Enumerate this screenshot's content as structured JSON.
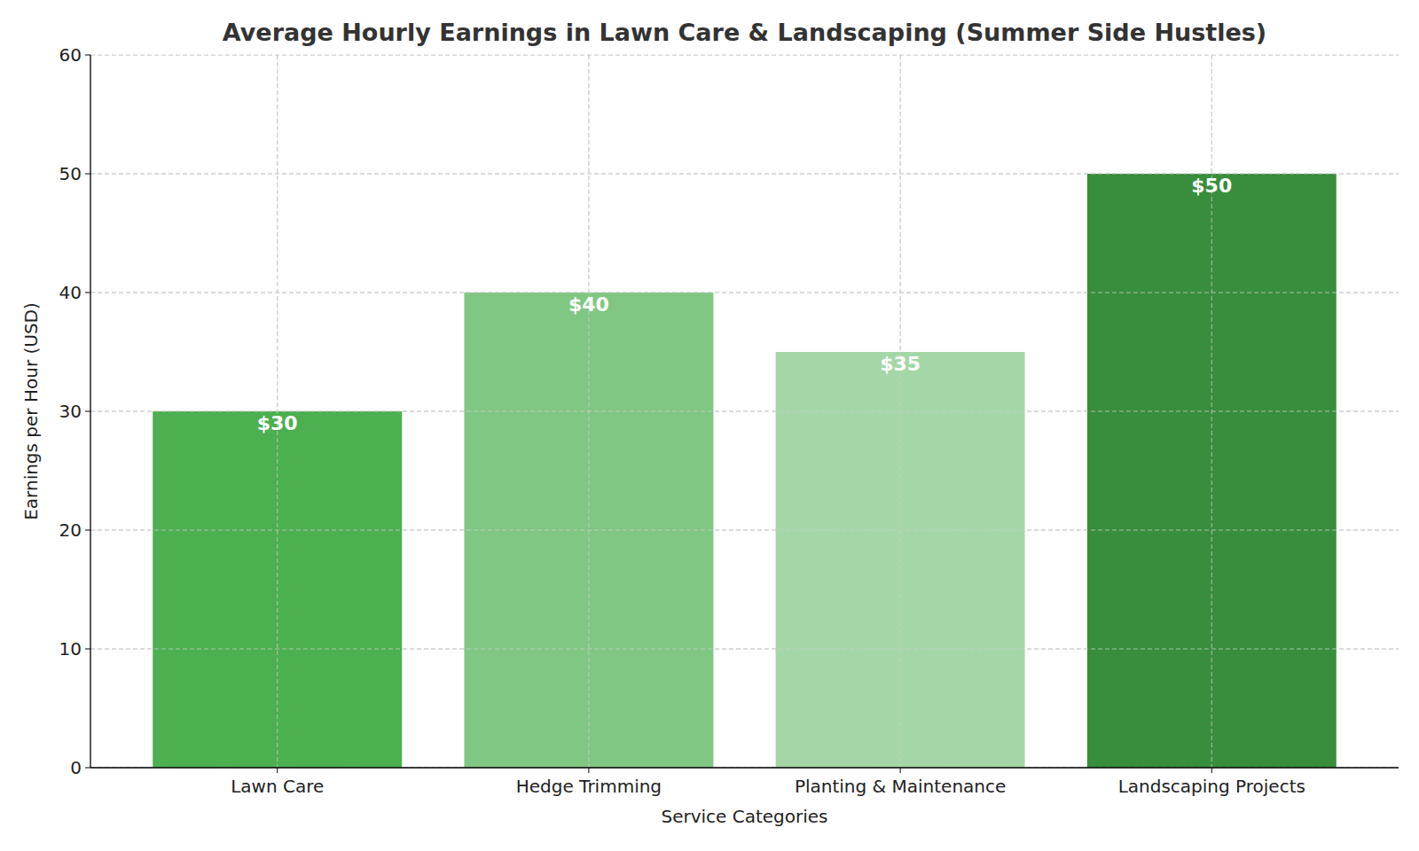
{
  "chart_data": {
    "type": "bar",
    "title": "Average Hourly Earnings in Lawn Care & Landscaping (Summer Side Hustles)",
    "x_label": "Service Categories",
    "y_label": "Earnings per Hour (USD)",
    "categories": [
      "Lawn Care",
      "Hedge Trimming",
      "Planting & Maintenance",
      "Landscaping Projects"
    ],
    "values": [
      30,
      40,
      35,
      50
    ],
    "value_labels": [
      "$30",
      "$40",
      "$35",
      "$50"
    ],
    "colors": [
      "#4caf50",
      "#81c784",
      "#a5d6a7",
      "#388e3c"
    ],
    "ylim": [
      0,
      60
    ],
    "yticks": [
      0,
      10,
      20,
      30,
      40,
      50,
      60
    ],
    "grid": true,
    "data_labels": true
  }
}
